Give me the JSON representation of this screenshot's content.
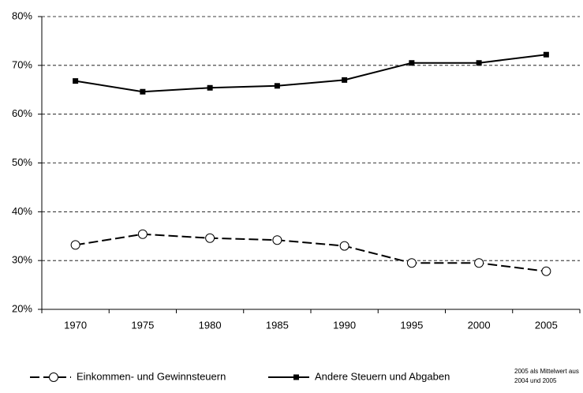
{
  "chart_data": {
    "type": "line",
    "categories": [
      "1970",
      "1975",
      "1980",
      "1985",
      "1990",
      "1995",
      "2000",
      "2005"
    ],
    "series": [
      {
        "name": "Einkommen- und Gewinnsteuern",
        "color": "#000000",
        "marker": "circle",
        "line_style": "dashed",
        "values": [
          33.2,
          35.4,
          34.6,
          34.2,
          33.0,
          29.5,
          29.5,
          27.8
        ]
      },
      {
        "name": "Andere Steuern und Abgaben",
        "color": "#000000",
        "marker": "square",
        "line_style": "solid",
        "values": [
          66.8,
          64.6,
          65.4,
          65.8,
          67.0,
          70.5,
          70.5,
          72.2
        ]
      }
    ],
    "ylim": [
      20,
      80
    ],
    "yticks": [
      {
        "value": 20,
        "label": "20%"
      },
      {
        "value": 30,
        "label": "30%"
      },
      {
        "value": 40,
        "label": "40%"
      },
      {
        "value": 50,
        "label": "50%"
      },
      {
        "value": 60,
        "label": "60%"
      },
      {
        "value": 70,
        "label": "70%"
      },
      {
        "value": 80,
        "label": "80%"
      }
    ],
    "grid": true,
    "legend": "bottom",
    "annotation": [
      "2005 als Mittelwert aus",
      "2004 und 2005"
    ]
  }
}
